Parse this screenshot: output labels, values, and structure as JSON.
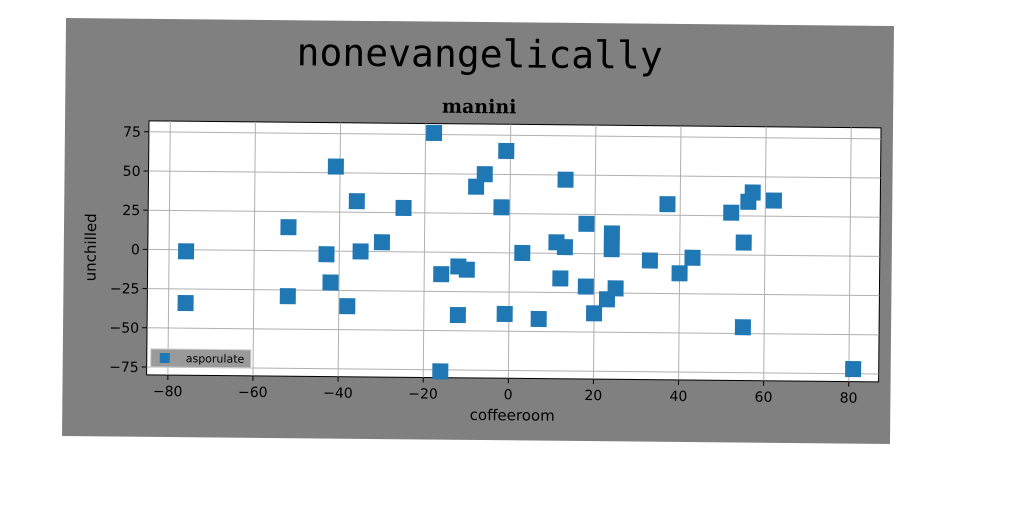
{
  "suptitle": "nonevangelically",
  "chart_data": {
    "type": "scatter",
    "title": "manini",
    "xlabel": "coffeeroom",
    "ylabel": "unchilled",
    "xlim": [
      -85,
      87
    ],
    "ylim": [
      -80,
      82
    ],
    "xticks": [
      -80,
      -60,
      -40,
      -20,
      0,
      20,
      40,
      60,
      80
    ],
    "yticks": [
      75,
      50,
      25,
      0,
      -25,
      -50,
      -75
    ],
    "grid": true,
    "legend_position": "lower-left",
    "marker_color": "#1f77b4",
    "series": [
      {
        "name": "asporulate",
        "points": [
          {
            "x": -76,
            "y": -1
          },
          {
            "x": -76,
            "y": -34
          },
          {
            "x": -52,
            "y": 15
          },
          {
            "x": -52,
            "y": -29
          },
          {
            "x": -43,
            "y": -2
          },
          {
            "x": -42,
            "y": -20
          },
          {
            "x": -41,
            "y": 54
          },
          {
            "x": -38,
            "y": -35
          },
          {
            "x": -36,
            "y": 32
          },
          {
            "x": -35,
            "y": 0
          },
          {
            "x": -30,
            "y": 6
          },
          {
            "x": -25,
            "y": 28
          },
          {
            "x": -18,
            "y": 76
          },
          {
            "x": -16,
            "y": -14
          },
          {
            "x": -16,
            "y": -76
          },
          {
            "x": -12,
            "y": -40
          },
          {
            "x": -12,
            "y": -9
          },
          {
            "x": -10,
            "y": -11
          },
          {
            "x": -8,
            "y": 42
          },
          {
            "x": -6,
            "y": 50
          },
          {
            "x": -2,
            "y": 29
          },
          {
            "x": -1,
            "y": 65
          },
          {
            "x": -1,
            "y": -39
          },
          {
            "x": 3,
            "y": 0
          },
          {
            "x": 7,
            "y": -42
          },
          {
            "x": 11,
            "y": 7
          },
          {
            "x": 12,
            "y": -16
          },
          {
            "x": 13,
            "y": 4
          },
          {
            "x": 13,
            "y": 47
          },
          {
            "x": 18,
            "y": 19
          },
          {
            "x": 18,
            "y": -21
          },
          {
            "x": 20,
            "y": -38
          },
          {
            "x": 23,
            "y": -29
          },
          {
            "x": 24,
            "y": 13
          },
          {
            "x": 24,
            "y": 3
          },
          {
            "x": 25,
            "y": -22
          },
          {
            "x": 33,
            "y": -4
          },
          {
            "x": 37,
            "y": 32
          },
          {
            "x": 40,
            "y": -12
          },
          {
            "x": 43,
            "y": -2
          },
          {
            "x": 52,
            "y": 27
          },
          {
            "x": 55,
            "y": 8
          },
          {
            "x": 55,
            "y": -46
          },
          {
            "x": 56,
            "y": 34
          },
          {
            "x": 57,
            "y": 40
          },
          {
            "x": 62,
            "y": 35
          },
          {
            "x": 81,
            "y": -72
          }
        ]
      }
    ]
  }
}
